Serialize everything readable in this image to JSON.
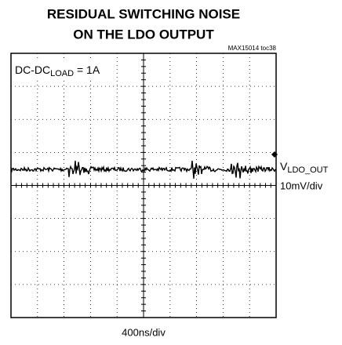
{
  "title": [
    "RESIDUAL SWITCHING NOISE",
    "ON THE LDO OUTPUT"
  ],
  "figure_id": "MAX15014 toc38",
  "condition": {
    "text": "DC-DC",
    "subscript": "LOAD",
    "suffix": " = 1A"
  },
  "channel": {
    "name": "V",
    "subscript": "LDO_OUT",
    "scale": "10mV/div"
  },
  "timebase": "400ns/div"
}
